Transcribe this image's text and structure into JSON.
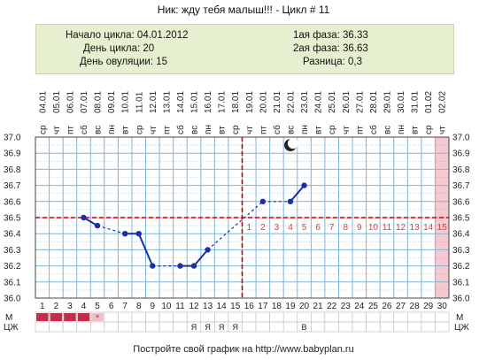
{
  "header": {
    "title": "Ник: жду тебя малыш!!! - Цикл # 11",
    "cycle_start": "Начало цикла: 04.01.2012",
    "cycle_day": "День цикла: 20",
    "ovulation_day": "День овуляции: 15",
    "phase1": "1ая фаза: 36.33",
    "phase2": "2ая фаза: 36.63",
    "difference": "Разница: 0,3"
  },
  "footer": {
    "text": "Постройте свой график на http://www.babyplan.ru"
  },
  "colors": {
    "line": "#1a2fa8",
    "grid": "#7fb5d6",
    "coverline": "#cc0000",
    "ovulation_marker": "#cc0000",
    "highlight": "#f6c9cf",
    "post_ovulation_label": "#cc4444",
    "info_box": "#e6f0d0"
  },
  "moon_icon": "crescent-moon-icon",
  "chart_data": {
    "type": "line",
    "title": "",
    "xlabel": "",
    "ylabel": "",
    "ylim": [
      36.0,
      37.0
    ],
    "y_ticks": [
      "37.0",
      "36.9",
      "36.8",
      "36.7",
      "36.6",
      "36.5",
      "36.4",
      "36.3",
      "36.2",
      "36.1",
      "36.0"
    ],
    "days": [
      1,
      2,
      3,
      4,
      5,
      6,
      7,
      8,
      9,
      10,
      11,
      12,
      13,
      14,
      15,
      16,
      17,
      18,
      19,
      20,
      21,
      22,
      23,
      24,
      25,
      26,
      27,
      28,
      29,
      30
    ],
    "dates": [
      "04.01",
      "05.01",
      "06.01",
      "07.01",
      "08.01",
      "09.01",
      "10.01",
      "11.01",
      "12.01",
      "13.01",
      "14.01",
      "15.01",
      "16.01",
      "17.01",
      "18.01",
      "19.01",
      "20.01",
      "21.01",
      "22.01",
      "23.01",
      "24.01",
      "25.01",
      "26.01",
      "27.01",
      "28.01",
      "29.01",
      "30.01",
      "31.01",
      "01.02",
      "02.02"
    ],
    "weekdays": [
      "ср",
      "чт",
      "пт",
      "сб",
      "вс",
      "пн",
      "вт",
      "ср",
      "чт",
      "пт",
      "сб",
      "вс",
      "пн",
      "вт",
      "ср",
      "чт",
      "пт",
      "сб",
      "вс",
      "пн",
      "вт",
      "ср",
      "чт",
      "пт",
      "сб",
      "вс",
      "пн",
      "вт",
      "ср",
      "чт"
    ],
    "temperatures": [
      {
        "day": 4,
        "temp": 36.5
      },
      {
        "day": 5,
        "temp": 36.45
      },
      {
        "day": 7,
        "temp": 36.4
      },
      {
        "day": 8,
        "temp": 36.4
      },
      {
        "day": 9,
        "temp": 36.2
      },
      {
        "day": 11,
        "temp": 36.2
      },
      {
        "day": 12,
        "temp": 36.2
      },
      {
        "day": 13,
        "temp": 36.3
      },
      {
        "day": 17,
        "temp": 36.6
      },
      {
        "day": 19,
        "temp": 36.6
      },
      {
        "day": 20,
        "temp": 36.7
      }
    ],
    "coverline": 36.5,
    "ovulation_day": 15,
    "post_ovulation_labels": [
      {
        "day": 16,
        "text": "1"
      },
      {
        "day": 17,
        "text": "2"
      },
      {
        "day": 18,
        "text": "3"
      },
      {
        "day": 19,
        "text": "4"
      },
      {
        "day": 20,
        "text": "5"
      },
      {
        "day": 21,
        "text": "6"
      },
      {
        "day": 22,
        "text": "7"
      },
      {
        "day": 23,
        "text": "8"
      },
      {
        "day": 24,
        "text": "9"
      },
      {
        "day": 25,
        "text": "10"
      },
      {
        "day": 26,
        "text": "11"
      },
      {
        "day": 27,
        "text": "12"
      },
      {
        "day": 28,
        "text": "13"
      },
      {
        "day": 29,
        "text": "14"
      },
      {
        "day": 30,
        "text": "15"
      }
    ],
    "highlight_day": 30,
    "moon_day": 19,
    "moon_temp": 36.95,
    "row_labels": {
      "m": "М",
      "czh": "ЦЖ"
    },
    "m_row": [
      {
        "day": 1,
        "mark": "solid"
      },
      {
        "day": 2,
        "mark": "solid"
      },
      {
        "day": 3,
        "mark": "solid"
      },
      {
        "day": 4,
        "mark": "solid"
      },
      {
        "day": 5,
        "mark": "dotted",
        "text": "*"
      }
    ],
    "czh_row": [
      {
        "day": 12,
        "text": "Я"
      },
      {
        "day": 13,
        "text": "Я"
      },
      {
        "day": 14,
        "text": "Я"
      },
      {
        "day": 15,
        "text": "Я"
      },
      {
        "day": 20,
        "text": "В"
      }
    ],
    "grid": true
  }
}
